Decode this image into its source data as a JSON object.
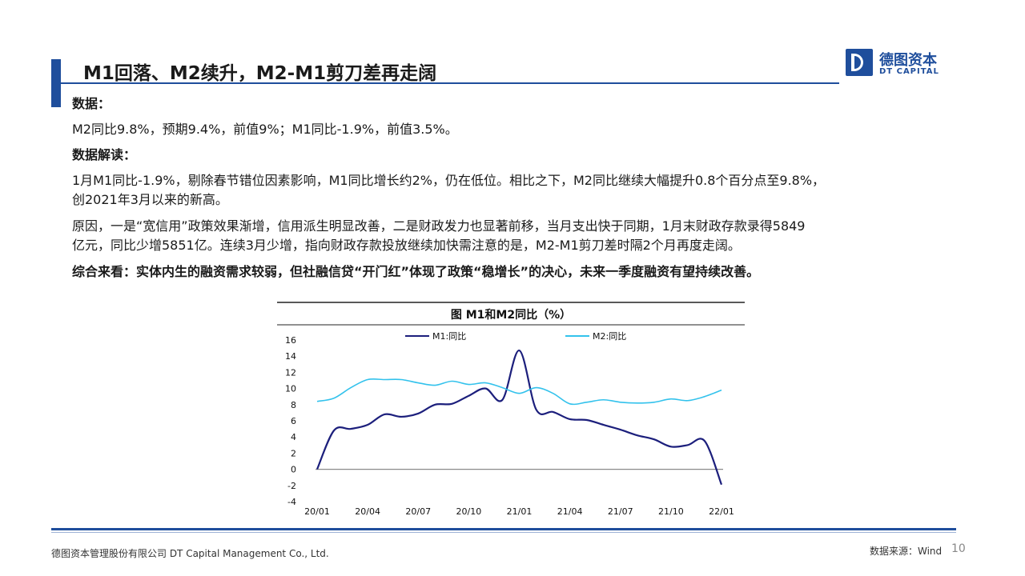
{
  "header": {
    "title": "M1回落、M2续升，M2-M1剪刀差再走阔",
    "logo_cn": "德图资本",
    "logo_en": "DT CAPITAL"
  },
  "body": {
    "data_heading": "数据：",
    "data_line": "M2同比9.8%，预期9.4%，前值9%；M1同比-1.9%，前值3.5%。",
    "analysis_heading": "数据解读：",
    "para1_line1": "1月M1同比-1.9%，剔除春节错位因素影响，M1同比增长约2%，仍在低位。相比之下，M2同比继续大幅提升0.8个百分点至9.8%，",
    "para1_line2": "创2021年3月以来的新高。",
    "para2_line1": "原因，一是“宽信用”政策效果渐增，信用派生明显改善，二是财政发力也显著前移，当月支出快于同期，1月末财政存款录得5849",
    "para2_line2": "亿元，同比少增5851亿。连续3月少增，指向财政存款投放继续加快需注意的是，M2-M1剪刀差时隔2个月再度走阔。",
    "summary": "综合来看：实体内生的融资需求较弱，但社融信贷“开门红”体现了政策“稳增长”的决心，未来一季度融资有望持续改善。"
  },
  "footer": {
    "company": "德图资本管理股份有限公司 DT Capital Management Co., Ltd.",
    "source": "数据来源：Wind",
    "page": "10"
  },
  "chart_data": {
    "type": "line",
    "title": "图 M1和M2同比（%）",
    "ylim": [
      -4,
      16
    ],
    "yticks": [
      -4,
      -2,
      0,
      2,
      4,
      6,
      8,
      10,
      12,
      14,
      16
    ],
    "xticks": [
      "20/01",
      "20/04",
      "20/07",
      "20/10",
      "21/01",
      "21/04",
      "21/07",
      "21/10",
      "22/01"
    ],
    "x": [
      "20/01",
      "20/02",
      "20/03",
      "20/04",
      "20/05",
      "20/06",
      "20/07",
      "20/08",
      "20/09",
      "20/10",
      "20/11",
      "20/12",
      "21/01",
      "21/02",
      "21/03",
      "21/04",
      "21/05",
      "21/06",
      "21/07",
      "21/08",
      "21/09",
      "21/10",
      "21/11",
      "21/12",
      "22/01"
    ],
    "legend_position": "top",
    "series": [
      {
        "name": "M1:同比",
        "color": "#1c1f7c",
        "values": [
          0.0,
          4.8,
          5.0,
          5.5,
          6.8,
          6.5,
          6.9,
          8.0,
          8.1,
          9.1,
          10.0,
          8.6,
          14.7,
          7.4,
          7.1,
          6.2,
          6.1,
          5.5,
          4.9,
          4.2,
          3.7,
          2.8,
          3.0,
          3.5,
          -1.9
        ]
      },
      {
        "name": "M2:同比",
        "color": "#33c2ec",
        "values": [
          8.4,
          8.8,
          10.1,
          11.1,
          11.1,
          11.1,
          10.7,
          10.4,
          10.9,
          10.5,
          10.7,
          10.1,
          9.4,
          10.1,
          9.4,
          8.1,
          8.3,
          8.6,
          8.3,
          8.2,
          8.3,
          8.7,
          8.5,
          9.0,
          9.8
        ]
      }
    ]
  }
}
